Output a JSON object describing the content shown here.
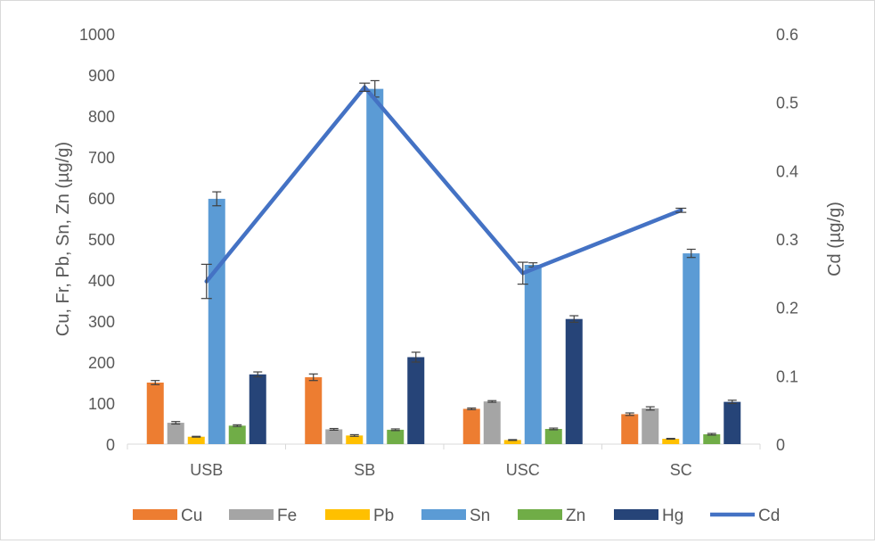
{
  "chart_data": {
    "type": "bar",
    "categories": [
      "USB",
      "SB",
      "USC",
      "SC"
    ],
    "series": [
      {
        "name": "Cu",
        "color": "#ED7D31",
        "values": [
          150,
          163,
          86,
          73
        ],
        "errors": [
          5,
          8,
          2,
          3
        ]
      },
      {
        "name": "Fe",
        "color": "#A5A5A5",
        "values": [
          52,
          36,
          104,
          87
        ],
        "errors": [
          3,
          2,
          2,
          4
        ]
      },
      {
        "name": "Pb",
        "color": "#FFC000",
        "values": [
          18,
          21,
          10,
          13
        ],
        "errors": [
          1,
          2,
          1,
          1
        ]
      },
      {
        "name": "Sn",
        "color": "#5B9BD5",
        "values": [
          598,
          866,
          437,
          465
        ],
        "errors": [
          17,
          20,
          5,
          10
        ]
      },
      {
        "name": "Zn",
        "color": "#70AD47",
        "values": [
          45,
          35,
          37,
          24
        ],
        "errors": [
          2,
          2,
          2,
          2
        ]
      },
      {
        "name": "Hg",
        "color": "#264478",
        "values": [
          170,
          212,
          305,
          103
        ],
        "errors": [
          6,
          12,
          8,
          4
        ]
      }
    ],
    "line_series": {
      "name": "Cd",
      "color": "#4472C4",
      "axis": "secondary",
      "values": [
        0.238,
        0.522,
        0.25,
        0.342
      ],
      "errors": [
        0.025,
        0.006,
        0.016,
        0.003
      ]
    },
    "ylabel": "Cu, Fr, Pb, Sn, Zn (µg/g)",
    "y2label": "Cd (µg/g)",
    "ylim": [
      0,
      1000
    ],
    "y2lim": [
      0,
      0.6
    ],
    "yticks": [
      "0",
      "100",
      "200",
      "300",
      "400",
      "500",
      "600",
      "700",
      "800",
      "900",
      "1000"
    ],
    "y2ticks": [
      "0",
      "0.1",
      "0.2",
      "0.3",
      "0.4",
      "0.5",
      "0.6"
    ],
    "grid": false,
    "legend_position": "bottom"
  }
}
